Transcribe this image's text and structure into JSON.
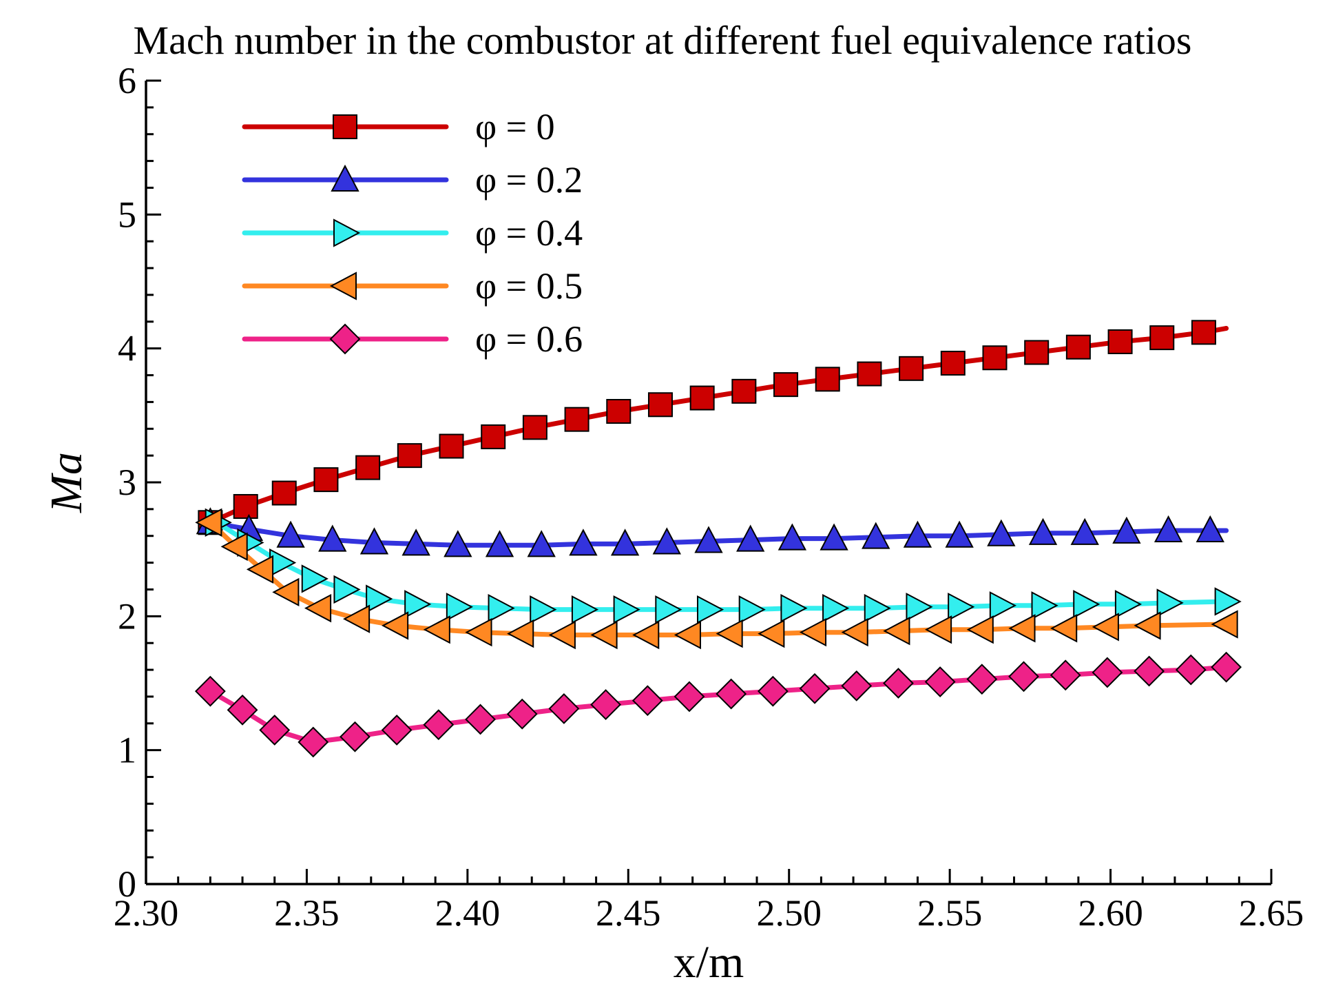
{
  "chart_data": {
    "type": "line",
    "title": "Mach number in the combustor at different fuel equivalence ratios",
    "xlabel": "x/m",
    "ylabel": "Ma",
    "xlim": [
      2.3,
      2.65
    ],
    "ylim": [
      0,
      6
    ],
    "x_ticks": [
      "2.30",
      "2.35",
      "2.40",
      "2.45",
      "2.50",
      "2.55",
      "2.60",
      "2.65"
    ],
    "y_ticks": [
      "0",
      "1",
      "2",
      "3",
      "4",
      "5",
      "6"
    ],
    "legend_position": "top-left",
    "series": [
      {
        "name": "φ = 0",
        "color": "#cc0000",
        "marker": "square",
        "x": [
          2.32,
          2.331,
          2.343,
          2.356,
          2.369,
          2.382,
          2.395,
          2.408,
          2.421,
          2.434,
          2.447,
          2.46,
          2.473,
          2.486,
          2.499,
          2.512,
          2.525,
          2.538,
          2.551,
          2.564,
          2.577,
          2.59,
          2.603,
          2.616,
          2.629,
          2.636
        ],
        "values": [
          2.7,
          2.82,
          2.92,
          3.02,
          3.11,
          3.2,
          3.27,
          3.34,
          3.41,
          3.47,
          3.53,
          3.58,
          3.63,
          3.68,
          3.73,
          3.77,
          3.81,
          3.85,
          3.89,
          3.93,
          3.97,
          4.01,
          4.05,
          4.08,
          4.12,
          4.15
        ]
      },
      {
        "name": "φ = 0.2",
        "color": "#3333dd",
        "marker": "triangle-up",
        "x": [
          2.32,
          2.332,
          2.345,
          2.358,
          2.371,
          2.384,
          2.397,
          2.41,
          2.423,
          2.436,
          2.449,
          2.462,
          2.475,
          2.488,
          2.501,
          2.514,
          2.527,
          2.54,
          2.553,
          2.566,
          2.579,
          2.592,
          2.605,
          2.618,
          2.631,
          2.636
        ],
        "values": [
          2.7,
          2.65,
          2.6,
          2.57,
          2.55,
          2.54,
          2.53,
          2.53,
          2.53,
          2.54,
          2.54,
          2.55,
          2.56,
          2.57,
          2.58,
          2.58,
          2.59,
          2.6,
          2.6,
          2.61,
          2.62,
          2.62,
          2.63,
          2.64,
          2.64,
          2.64
        ]
      },
      {
        "name": "φ = 0.4",
        "color": "#33eeee",
        "marker": "triangle-right",
        "x": [
          2.322,
          2.332,
          2.342,
          2.352,
          2.362,
          2.372,
          2.384,
          2.397,
          2.41,
          2.423,
          2.436,
          2.449,
          2.462,
          2.475,
          2.488,
          2.501,
          2.514,
          2.527,
          2.54,
          2.553,
          2.566,
          2.579,
          2.592,
          2.605,
          2.618,
          2.636
        ],
        "values": [
          2.7,
          2.55,
          2.4,
          2.28,
          2.2,
          2.13,
          2.09,
          2.07,
          2.06,
          2.05,
          2.05,
          2.05,
          2.05,
          2.05,
          2.05,
          2.06,
          2.06,
          2.06,
          2.07,
          2.07,
          2.08,
          2.08,
          2.09,
          2.09,
          2.1,
          2.11
        ]
      },
      {
        "name": "φ = 0.5",
        "color": "#ff8822",
        "marker": "triangle-left",
        "x": [
          2.32,
          2.328,
          2.336,
          2.344,
          2.354,
          2.366,
          2.378,
          2.391,
          2.404,
          2.417,
          2.43,
          2.443,
          2.456,
          2.469,
          2.482,
          2.495,
          2.508,
          2.521,
          2.534,
          2.547,
          2.56,
          2.573,
          2.586,
          2.599,
          2.612,
          2.636
        ],
        "values": [
          2.7,
          2.52,
          2.35,
          2.18,
          2.06,
          1.98,
          1.93,
          1.9,
          1.88,
          1.87,
          1.86,
          1.86,
          1.86,
          1.86,
          1.87,
          1.87,
          1.88,
          1.88,
          1.89,
          1.9,
          1.9,
          1.91,
          1.91,
          1.92,
          1.93,
          1.94
        ]
      },
      {
        "name": "φ = 0.6",
        "color": "#ee2288",
        "marker": "diamond",
        "x": [
          2.32,
          2.33,
          2.34,
          2.352,
          2.365,
          2.378,
          2.391,
          2.404,
          2.417,
          2.43,
          2.443,
          2.456,
          2.469,
          2.482,
          2.495,
          2.508,
          2.521,
          2.534,
          2.547,
          2.56,
          2.573,
          2.586,
          2.599,
          2.612,
          2.625,
          2.636
        ],
        "values": [
          1.44,
          1.3,
          1.15,
          1.06,
          1.1,
          1.15,
          1.19,
          1.23,
          1.27,
          1.31,
          1.34,
          1.37,
          1.4,
          1.42,
          1.44,
          1.46,
          1.48,
          1.5,
          1.51,
          1.53,
          1.55,
          1.56,
          1.58,
          1.59,
          1.6,
          1.62
        ]
      }
    ]
  }
}
